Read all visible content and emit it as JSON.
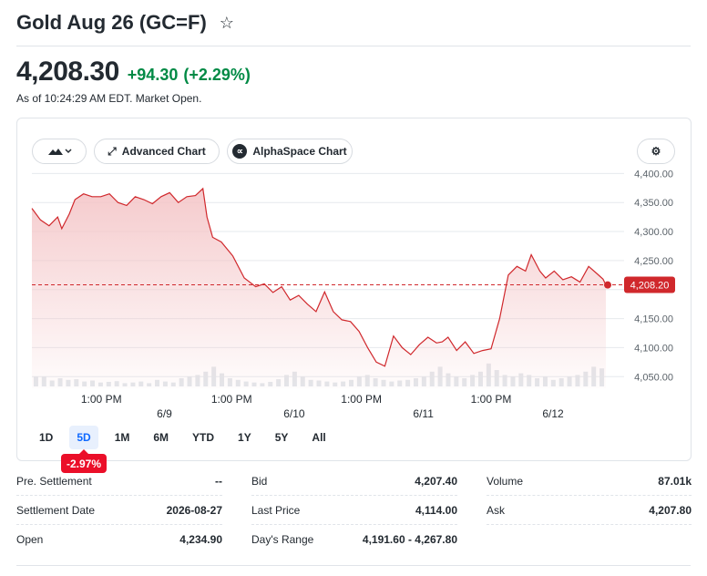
{
  "header": {
    "title": "Gold Aug 26 (GC=F)",
    "star_icon": "star-outline-icon"
  },
  "quote": {
    "price": "4,208.30",
    "change": "+94.30",
    "change_pct": "(+2.29%)",
    "as_of": "As of 10:24:29 AM EDT. Market Open.",
    "up_color": "#008a45"
  },
  "toolbar": {
    "type_icon": "mountain-chart-icon",
    "advanced_label": "Advanced Chart",
    "alphaspace_label": "AlphaSpace Chart",
    "alphaspace_glyph": "∝",
    "settings_icon": "gear-icon"
  },
  "chart_data": {
    "type": "area",
    "line_color": "#d0282c",
    "fill_color": "#f4c5c7",
    "reference_price": 4208.2,
    "current_label": "4,208.20",
    "ylim": [
      4030,
      4410
    ],
    "y_ticks": [
      4400,
      4350,
      4300,
      4250,
      4200,
      4150,
      4100,
      4050
    ],
    "y_tick_labels": [
      "4,400.00",
      "4,350.00",
      "4,300.00",
      "4,250.00",
      "",
      "4,150.00",
      "4,100.00",
      "4,050.00"
    ],
    "x_time_labels": [
      "1:00 PM",
      "1:00 PM",
      "1:00 PM",
      "1:00 PM"
    ],
    "x_date_labels": [
      "6/9",
      "6/10",
      "6/11",
      "6/12"
    ],
    "x_range": [
      0,
      100
    ],
    "x_time_positions": [
      12.1,
      34.8,
      57.4,
      80.0
    ],
    "x_date_positions": [
      23.1,
      45.7,
      68.2,
      90.8
    ],
    "series": [
      {
        "x": [
          0,
          1.5,
          3,
          4.5,
          5.2,
          6.5,
          7.5,
          9,
          10.5,
          12,
          13.5,
          15,
          16.5,
          18,
          19.5,
          21,
          22.5,
          24,
          25.5,
          27,
          28.5,
          29.8,
          30.5,
          31.5,
          33,
          35,
          37,
          39,
          40.5,
          42,
          43.5,
          45,
          46.5,
          48,
          49.5,
          51,
          52.5,
          54,
          55.5,
          57,
          58.5,
          60,
          61.5,
          63,
          64.5,
          66,
          67.5,
          69,
          70.5,
          71.5,
          72.5,
          74,
          75.5,
          77,
          78.5,
          80,
          81.5,
          83,
          84.5,
          86,
          87,
          88.5,
          89.5,
          91,
          92.5,
          94,
          95.5,
          97,
          98.5,
          99.5,
          100
        ],
        "y": [
          4340,
          4320,
          4310,
          4325,
          4305,
          4330,
          4355,
          4365,
          4360,
          4360,
          4365,
          4350,
          4345,
          4360,
          4355,
          4348,
          4360,
          4367,
          4350,
          4360,
          4362,
          4374,
          4325,
          4290,
          4282,
          4258,
          4220,
          4205,
          4210,
          4195,
          4205,
          4182,
          4190,
          4175,
          4162,
          4196,
          4162,
          4148,
          4145,
          4128,
          4100,
          4075,
          4068,
          4120,
          4100,
          4088,
          4105,
          4118,
          4108,
          4110,
          4118,
          4095,
          4110,
          4090,
          4095,
          4098,
          4150,
          4225,
          4240,
          4232,
          4260,
          4232,
          4220,
          4232,
          4217,
          4222,
          4213,
          4240,
          4227,
          4218,
          4208
        ]
      }
    ],
    "volume": [
      0.3,
      0.3,
      0.18,
      0.25,
      0.2,
      0.22,
      0.15,
      0.18,
      0.12,
      0.14,
      0.16,
      0.1,
      0.12,
      0.15,
      0.1,
      0.2,
      0.15,
      0.12,
      0.25,
      0.3,
      0.35,
      0.45,
      0.6,
      0.4,
      0.25,
      0.2,
      0.15,
      0.12,
      0.1,
      0.14,
      0.22,
      0.35,
      0.45,
      0.3,
      0.2,
      0.18,
      0.15,
      0.12,
      0.15,
      0.2,
      0.3,
      0.35,
      0.25,
      0.2,
      0.15,
      0.18,
      0.2,
      0.25,
      0.3,
      0.45,
      0.6,
      0.4,
      0.3,
      0.25,
      0.35,
      0.45,
      0.7,
      0.5,
      0.35,
      0.3,
      0.4,
      0.35,
      0.25,
      0.3,
      0.2,
      0.25,
      0.3,
      0.35,
      0.45,
      0.6,
      0.55
    ]
  },
  "ranges": {
    "tabs": [
      "1D",
      "5D",
      "1M",
      "6M",
      "YTD",
      "1Y",
      "5Y",
      "All"
    ],
    "active": "5D",
    "badge": "-2.97%"
  },
  "stats": {
    "pre_settlement_label": "Pre. Settlement",
    "pre_settlement_value": "--",
    "settlement_date_label": "Settlement Date",
    "settlement_date_value": "2026-08-27",
    "open_label": "Open",
    "open_value": "4,234.90",
    "bid_label": "Bid",
    "bid_value": "4,207.40",
    "last_price_label": "Last Price",
    "last_price_value": "4,114.00",
    "days_range_label": "Day's Range",
    "days_range_value": "4,191.60 - 4,267.80",
    "volume_label": "Volume",
    "volume_value": "87.01k",
    "ask_label": "Ask",
    "ask_value": "4,207.80"
  }
}
